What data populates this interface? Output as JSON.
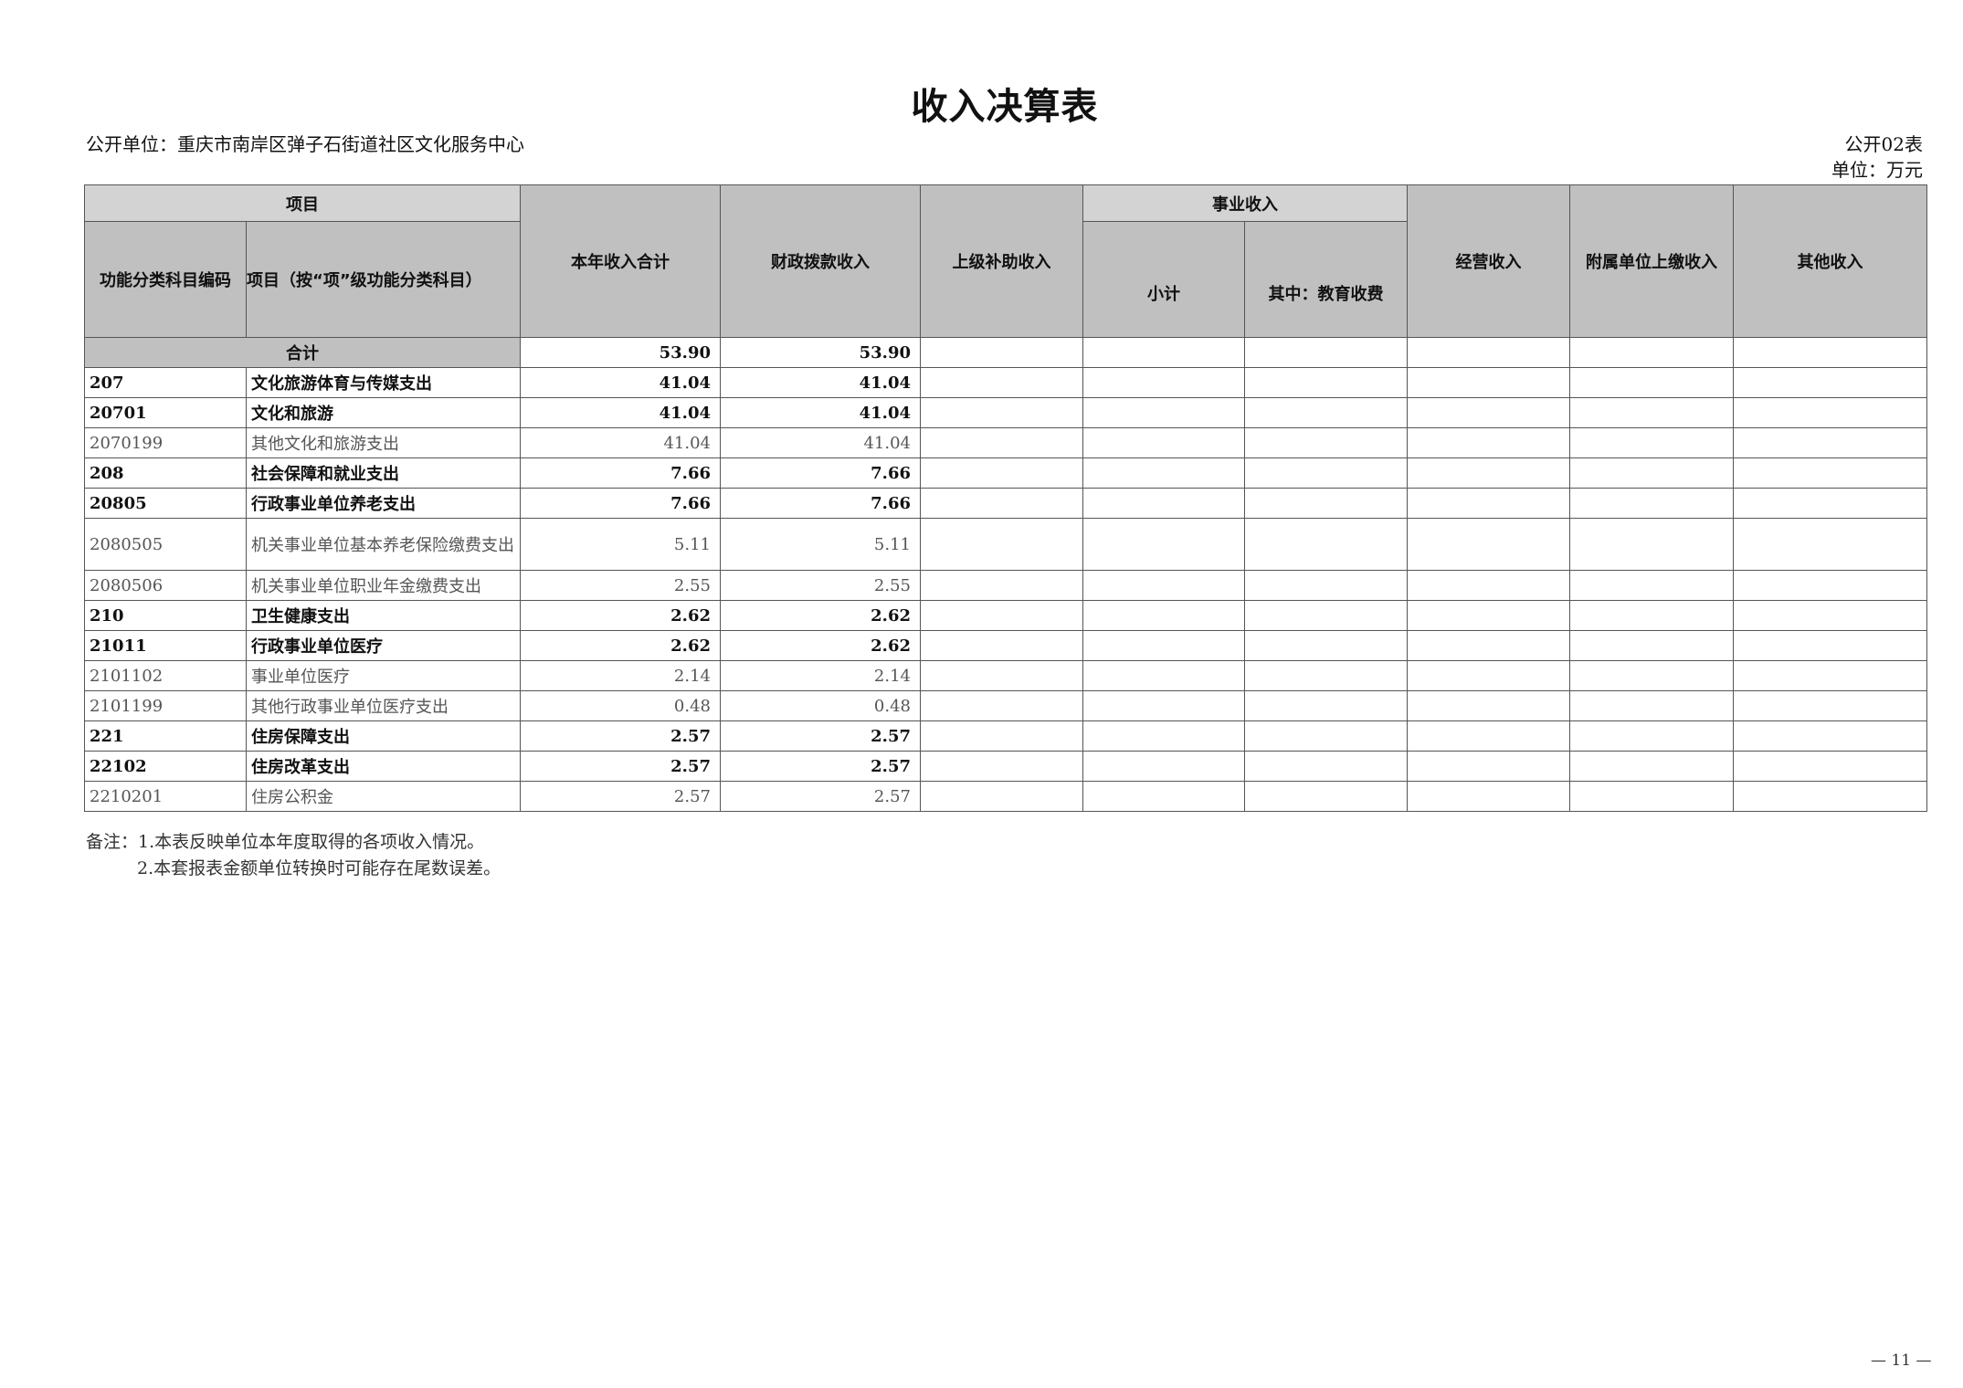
{
  "title": "收入决算表",
  "unit_label": "公开单位：重庆市南岸区弹子石街道社区文化服务中心",
  "form_no": "公开02表",
  "currency_unit": "单位：万元",
  "headers": {
    "item_group": "项目",
    "code": "功能分类科目编码",
    "name": "项目（按“项”级功能分类科目）",
    "total": "本年收入合计",
    "fiscal": "财政拨款收入",
    "superior": "上级补助收入",
    "business_group": "事业收入",
    "subtotal": "小计",
    "edu_fee": "其中：教育收费",
    "operating": "经营收入",
    "affiliated": "附属单位上缴收入",
    "other": "其他收入"
  },
  "summary": {
    "label": "合计",
    "total": "53.90",
    "fiscal": "53.90"
  },
  "rows": [
    {
      "code": "207",
      "name": "文化旅游体育与传媒支出",
      "total": "41.04",
      "fiscal": "41.04",
      "level": "bold"
    },
    {
      "code": "20701",
      "name": "文化和旅游",
      "total": "41.04",
      "fiscal": "41.04",
      "level": "bold"
    },
    {
      "code": "2070199",
      "name": "其他文化和旅游支出",
      "total": "41.04",
      "fiscal": "41.04",
      "level": "normal"
    },
    {
      "code": "208",
      "name": "社会保障和就业支出",
      "total": "7.66",
      "fiscal": "7.66",
      "level": "bold"
    },
    {
      "code": "20805",
      "name": "行政事业单位养老支出",
      "total": "7.66",
      "fiscal": "7.66",
      "level": "bold"
    },
    {
      "code": "2080505",
      "name": "机关事业单位基本养老保险缴费支出",
      "total": "5.11",
      "fiscal": "5.11",
      "level": "normal"
    },
    {
      "code": "2080506",
      "name": "机关事业单位职业年金缴费支出",
      "total": "2.55",
      "fiscal": "2.55",
      "level": "normal"
    },
    {
      "code": "210",
      "name": "卫生健康支出",
      "total": "2.62",
      "fiscal": "2.62",
      "level": "bold"
    },
    {
      "code": "21011",
      "name": "行政事业单位医疗",
      "total": "2.62",
      "fiscal": "2.62",
      "level": "bold"
    },
    {
      "code": "2101102",
      "name": "事业单位医疗",
      "total": "2.14",
      "fiscal": "2.14",
      "level": "normal"
    },
    {
      "code": "2101199",
      "name": "其他行政事业单位医疗支出",
      "total": "0.48",
      "fiscal": "0.48",
      "level": "normal"
    },
    {
      "code": "221",
      "name": "住房保障支出",
      "total": "2.57",
      "fiscal": "2.57",
      "level": "bold"
    },
    {
      "code": "22102",
      "name": "住房改革支出",
      "total": "2.57",
      "fiscal": "2.57",
      "level": "bold"
    },
    {
      "code": "2210201",
      "name": "住房公积金",
      "total": "2.57",
      "fiscal": "2.57",
      "level": "normal"
    }
  ],
  "notes": [
    "备注：1.本表反映单位本年度取得的各项收入情况。",
    "2.本套报表金额单位转换时可能存在尾数误差。"
  ],
  "page_number": "— 11 —"
}
